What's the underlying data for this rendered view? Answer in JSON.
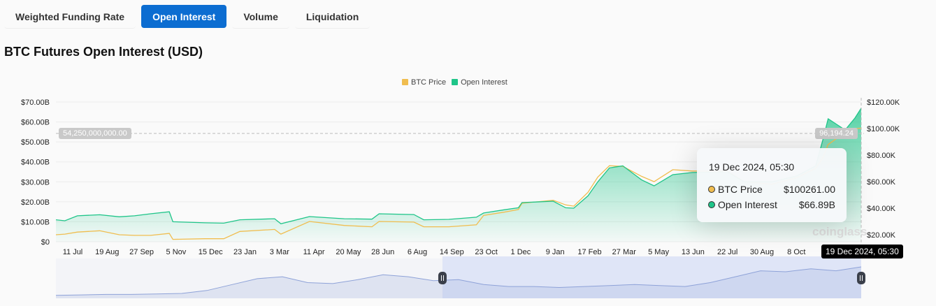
{
  "tabs": [
    {
      "label": "Weighted Funding Rate"
    },
    {
      "label": "Open Interest",
      "active": true
    },
    {
      "label": "Volume"
    },
    {
      "label": "Liquidation"
    }
  ],
  "page_title": "BTC Futures Open Interest (USD)",
  "colors": {
    "price": "#f0bd4f",
    "oi": "#1fc589",
    "accent": "#0c6dd1",
    "navigator": "#8ea2d8"
  },
  "watermark": "coinglass",
  "crosshair": {
    "left_value": "54,250,000,000.00",
    "right_value": "96,194.24",
    "date_label": "19 Dec 2024, 05:30"
  },
  "tooltip": {
    "date": "19 Dec 2024, 05:30",
    "rows": [
      {
        "label": "BTC Price",
        "value": "$100261.00",
        "color": "#f0bd4f"
      },
      {
        "label": "Open Interest",
        "value": "$66.89B",
        "color": "#1fc589"
      }
    ]
  },
  "chart_data": {
    "type": "line+area",
    "legend": [
      "BTC Price",
      "Open Interest"
    ],
    "legend_position": "top-center",
    "grid": true,
    "y_left": {
      "ticks": [
        "$0",
        "$10.00B",
        "$20.00B",
        "$30.00B",
        "$40.00B",
        "$50.00B",
        "$60.00B",
        "$70.00B"
      ],
      "range": [
        0,
        70
      ],
      "unit": "B USD"
    },
    "y_right": {
      "ticks": [
        "$20.00K",
        "$40.00K",
        "$60.00K",
        "$80.00K",
        "$100.00K",
        "$120.00K"
      ],
      "range": [
        0,
        120
      ],
      "unit": "K USD"
    },
    "x_ticks": [
      "11 Jul",
      "19 Aug",
      "27 Sep",
      "5 Nov",
      "15 Dec",
      "23 Jan",
      "3 Mar",
      "11 Apr",
      "20 May",
      "28 Jun",
      "6 Aug",
      "14 Sep",
      "23 Oct",
      "1 Dec",
      "9 Jan",
      "17 Feb",
      "27 Mar",
      "5 May",
      "13 Jun",
      "22 Jul",
      "30 Aug",
      "8 Oct"
    ],
    "x_range": [
      "2022-07-01",
      "2024-12-19"
    ],
    "series": [
      {
        "name": "Open Interest",
        "points": [
          [
            "2022-07-01",
            11
          ],
          [
            "2022-07-11",
            10.5
          ],
          [
            "2022-07-25",
            13
          ],
          [
            "2022-08-19",
            13.5
          ],
          [
            "2022-09-10",
            12.5
          ],
          [
            "2022-09-27",
            13
          ],
          [
            "2022-10-15",
            14
          ],
          [
            "2022-11-05",
            15
          ],
          [
            "2022-11-09",
            10
          ],
          [
            "2022-12-15",
            9.5
          ],
          [
            "2023-01-05",
            9.3
          ],
          [
            "2023-01-23",
            11
          ],
          [
            "2023-03-03",
            11.5
          ],
          [
            "2023-03-10",
            9
          ],
          [
            "2023-04-11",
            12.6
          ],
          [
            "2023-05-20",
            11.5
          ],
          [
            "2023-06-20",
            11.3
          ],
          [
            "2023-06-28",
            14
          ],
          [
            "2023-08-06",
            13.6
          ],
          [
            "2023-08-17",
            11
          ],
          [
            "2023-09-14",
            11.2
          ],
          [
            "2023-10-15",
            12.3
          ],
          [
            "2023-10-23",
            14.4
          ],
          [
            "2023-11-15",
            16
          ],
          [
            "2023-12-01",
            17
          ],
          [
            "2023-12-05",
            19.6
          ],
          [
            "2024-01-09",
            20.3
          ],
          [
            "2024-01-23",
            17
          ],
          [
            "2024-02-01",
            16.8
          ],
          [
            "2024-02-17",
            23
          ],
          [
            "2024-02-28",
            30
          ],
          [
            "2024-03-12",
            37
          ],
          [
            "2024-03-27",
            38
          ],
          [
            "2024-04-17",
            31
          ],
          [
            "2024-05-01",
            28
          ],
          [
            "2024-05-22",
            33.6
          ],
          [
            "2024-06-13",
            34.7
          ],
          [
            "2024-07-22",
            35
          ],
          [
            "2024-08-10",
            30
          ],
          [
            "2024-09-10",
            30
          ],
          [
            "2024-10-08",
            33
          ],
          [
            "2024-10-29",
            38
          ],
          [
            "2024-11-06",
            51
          ],
          [
            "2024-11-12",
            61.6
          ],
          [
            "2024-12-01",
            56
          ],
          [
            "2024-12-12",
            62
          ],
          [
            "2024-12-19",
            66.89
          ]
        ]
      },
      {
        "name": "BTC Price",
        "points": [
          [
            "2022-07-01",
            20
          ],
          [
            "2022-07-11",
            20.5
          ],
          [
            "2022-07-25",
            22
          ],
          [
            "2022-08-19",
            23
          ],
          [
            "2022-09-10",
            20
          ],
          [
            "2022-09-27",
            19.5
          ],
          [
            "2022-10-15",
            19.5
          ],
          [
            "2022-11-05",
            21
          ],
          [
            "2022-11-09",
            16.5
          ],
          [
            "2022-12-15",
            17
          ],
          [
            "2023-01-05",
            17
          ],
          [
            "2023-01-23",
            22.5
          ],
          [
            "2023-03-03",
            24
          ],
          [
            "2023-03-10",
            20.5
          ],
          [
            "2023-04-11",
            30
          ],
          [
            "2023-05-20",
            27
          ],
          [
            "2023-06-20",
            26
          ],
          [
            "2023-06-28",
            30
          ],
          [
            "2023-08-06",
            29.5
          ],
          [
            "2023-08-17",
            26
          ],
          [
            "2023-09-14",
            26
          ],
          [
            "2023-10-15",
            27.5
          ],
          [
            "2023-10-23",
            34.5
          ],
          [
            "2023-11-15",
            37
          ],
          [
            "2023-12-01",
            39
          ],
          [
            "2023-12-05",
            43.7
          ],
          [
            "2024-01-09",
            46
          ],
          [
            "2024-01-23",
            42.5
          ],
          [
            "2024-02-01",
            41.5
          ],
          [
            "2024-02-17",
            52
          ],
          [
            "2024-02-28",
            63.5
          ],
          [
            "2024-03-12",
            72
          ],
          [
            "2024-03-27",
            71.5
          ],
          [
            "2024-04-17",
            64
          ],
          [
            "2024-05-01",
            60
          ],
          [
            "2024-05-22",
            69
          ],
          [
            "2024-06-13",
            68
          ],
          [
            "2024-07-22",
            68
          ],
          [
            "2024-08-10",
            60
          ],
          [
            "2024-09-10",
            58
          ],
          [
            "2024-10-08",
            63
          ],
          [
            "2024-10-29",
            70
          ],
          [
            "2024-11-06",
            78
          ],
          [
            "2024-11-12",
            88
          ],
          [
            "2024-12-01",
            97
          ],
          [
            "2024-12-12",
            100
          ],
          [
            "2024-12-19",
            100.26
          ]
        ]
      }
    ],
    "navigator": {
      "values": [
        3,
        3.5,
        4,
        4,
        4.5,
        5,
        8,
        14,
        20,
        22,
        16,
        15,
        19,
        24,
        22,
        18,
        19,
        14,
        12,
        12,
        11,
        12,
        13,
        14,
        13,
        12,
        16,
        22,
        28,
        27,
        30,
        28,
        32
      ],
      "selected_fraction": [
        0.48,
        1.0
      ]
    }
  }
}
